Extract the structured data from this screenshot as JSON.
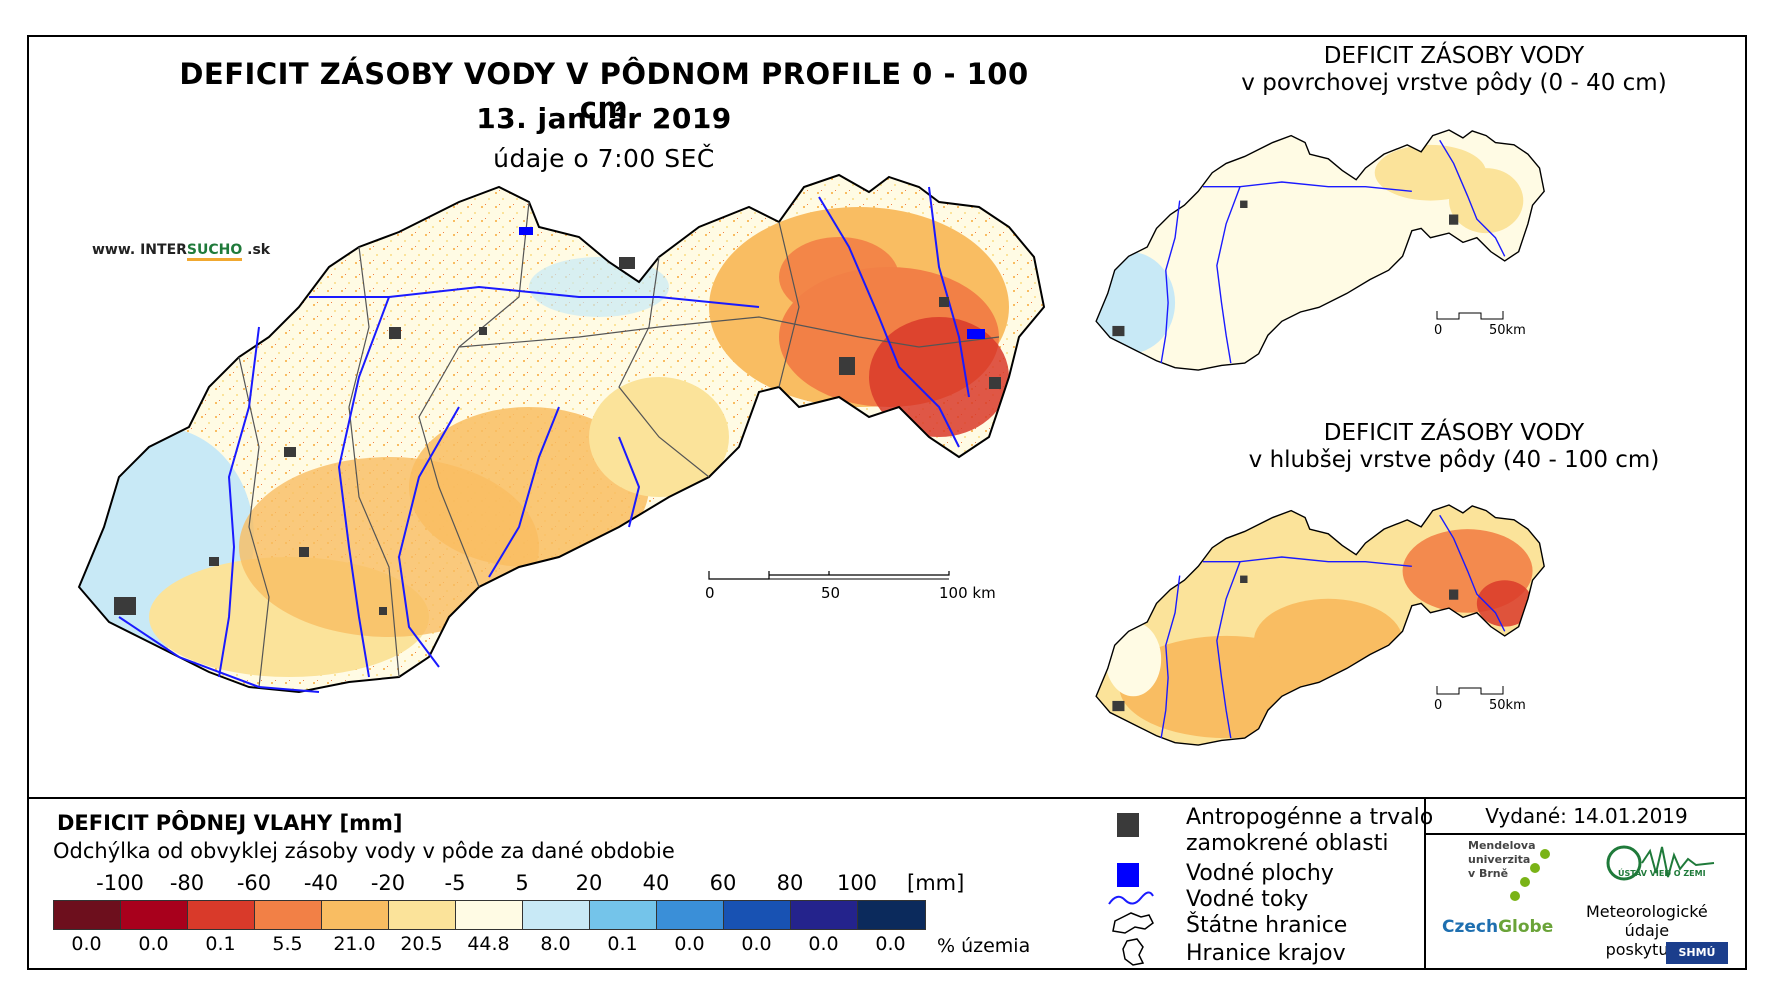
{
  "header": {
    "title": "DEFICIT ZÁSOBY VODY V PÔDNOM PROFILE 0 - 100 cm",
    "date": "13. január 2019",
    "time_note": "údaje o 7:00 SEČ"
  },
  "brand": {
    "prefix": "www. INTER",
    "accent": "SUCHO",
    "suffix": " .sk"
  },
  "main_scale": {
    "ticks": [
      "0",
      "50",
      "100 km"
    ]
  },
  "insets": [
    {
      "title_line1": "DEFICIT ZÁSOBY VODY",
      "title_line2": "v povrchovej vrstve pôdy (0 - 40 cm)",
      "scale_ticks": [
        "0",
        "50km"
      ]
    },
    {
      "title_line1": "DEFICIT ZÁSOBY VODY",
      "title_line2": "v hlubšej vrstve pôdy (40 - 100 cm)",
      "scale_ticks": [
        "0",
        "50km"
      ]
    }
  ],
  "legend": {
    "title": "DEFICIT PÔDNEJ VLAHY [mm]",
    "subtitle": "Odchýlka od obvyklej zásoby vody v pôde za dané obdobie",
    "unit": "[mm]",
    "ticks": [
      "-100",
      "-80",
      "-60",
      "-40",
      "-20",
      "-5",
      "5",
      "20",
      "40",
      "60",
      "80",
      "100"
    ],
    "classes": [
      {
        "color": "#6d0f1d",
        "pct": "0.0",
        "pct_value": 0.0
      },
      {
        "color": "#a8001c",
        "pct": "0.0",
        "pct_value": 0.0
      },
      {
        "color": "#d93a2a",
        "pct": "0.1",
        "pct_value": 0.1
      },
      {
        "color": "#f28046",
        "pct": "5.5",
        "pct_value": 5.5
      },
      {
        "color": "#f9bd62",
        "pct": "21.0",
        "pct_value": 21.0
      },
      {
        "color": "#fbe39a",
        "pct": "20.5",
        "pct_value": 20.5
      },
      {
        "color": "#fffbe4",
        "pct": "44.8",
        "pct_value": 44.8
      },
      {
        "color": "#c8e9f6",
        "pct": "8.0",
        "pct_value": 8.0
      },
      {
        "color": "#74c4ea",
        "pct": "0.1",
        "pct_value": 0.1
      },
      {
        "color": "#3a8fd8",
        "pct": "0.0",
        "pct_value": 0.0
      },
      {
        "color": "#1852b3",
        "pct": "0.0",
        "pct_value": 0.0
      },
      {
        "color": "#24238c",
        "pct": "0.0",
        "pct_value": 0.0
      },
      {
        "color": "#0b2a5c",
        "pct": "0.0",
        "pct_value": 0.0
      }
    ],
    "pct_unit": "% územia"
  },
  "symbols": [
    {
      "icon": "dark-square",
      "label_line1": "Antropogénne a trvalo",
      "label_line2": "zamokrené oblasti"
    },
    {
      "icon": "blue-square",
      "label_line1": "Vodné plochy"
    },
    {
      "icon": "river-line",
      "label_line1": "Vodné toky"
    },
    {
      "icon": "border-outline",
      "label_line1": "Štátne hranice"
    },
    {
      "icon": "region-outline",
      "label_line1": "Hranice krajov"
    }
  ],
  "credits": {
    "issued": "Vydané: 14.01.2019",
    "mendel_line1": "Mendelova",
    "mendel_line2": "univerzita",
    "mendel_line3": "v Brně",
    "czechglobe_c": "Czech",
    "czechglobe_g": "Globe",
    "uvz": "ÚSTAV VIED O ZEMI",
    "meteo_line1": "Meteorologické",
    "meteo_line2": "údaje",
    "meteo_line3": "poskytuje:",
    "shmu": "SHMÚ"
  },
  "colors": {
    "water": "#0000ff",
    "urban": "#3a3a3a",
    "border": "#000000",
    "region_border": "#555555"
  }
}
